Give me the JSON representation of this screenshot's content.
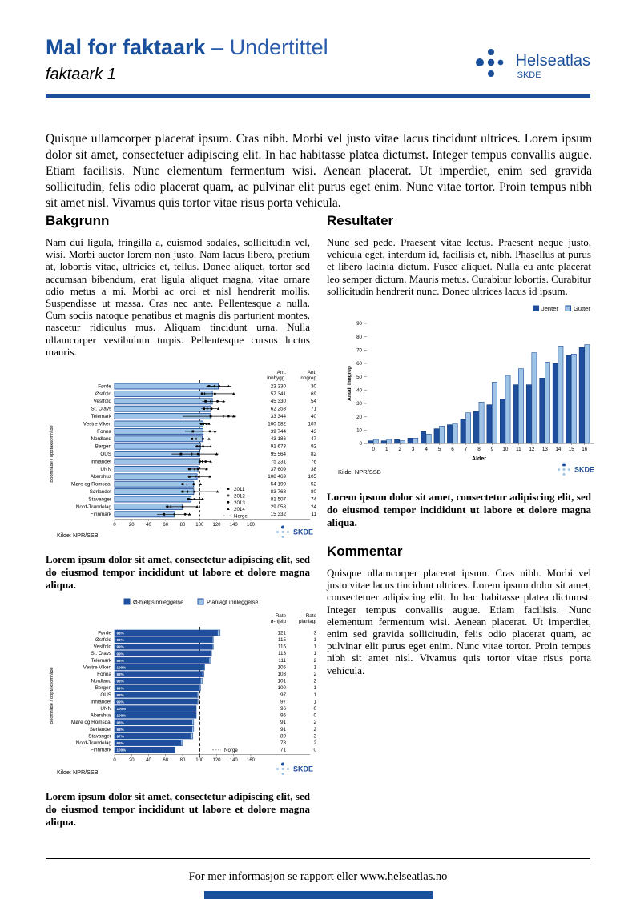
{
  "colors": {
    "brand": "#1a4f9c",
    "brand_light": "#2a5cab",
    "bar_dark": "#1f4e9c",
    "bar_light": "#9dc3e6",
    "bar_border": "#17467f",
    "norge_dash": "#999999"
  },
  "header": {
    "title_strong": "Mal for faktaark",
    "title_light": "– Undertittel",
    "subtitle": "faktaark 1",
    "logo_name": "Helseatlas",
    "logo_org": "SKDE"
  },
  "intro": "Quisque ullamcorper placerat ipsum. Cras nibh. Morbi vel justo vitae lacus tincidunt ultrices. Lorem ipsum dolor sit amet, consectetuer adipiscing elit. In hac habitasse platea dictumst. Integer tempus convallis augue. Etiam facilisis. Nunc elementum fermentum wisi. Aenean placerat. Ut imperdiet, enim sed gravida sollicitudin, felis odio placerat quam, ac pulvinar elit purus eget enim. Nunc vitae tortor. Proin tempus nibh sit amet nisl. Vivamus quis tortor vitae risus porta vehicula.",
  "sections": {
    "bakgrunn": {
      "heading": "Bakgrunn",
      "body": "Nam dui ligula, fringilla a, euismod sodales, sollicitudin vel, wisi. Morbi auctor lorem non justo. Nam lacus libero, pretium at, lobortis vitae, ultricies et, tellus. Donec aliquet, tortor sed accumsan bibendum, erat ligula aliquet magna, vitae ornare odio metus a mi. Morbi ac orci et nisl hendrerit mollis. Suspendisse ut massa. Cras nec ante. Pellentesque a nulla. Cum sociis natoque penatibus et magnis dis parturient montes, nascetur ridiculus mus. Aliquam tincidunt urna. Nulla ullamcorper vestibulum turpis. Pellentesque cursus luctus mauris."
    },
    "resultater": {
      "heading": "Resultater",
      "body": "Nunc sed pede. Praesent vitae lectus. Praesent neque justo, vehicula eget, interdum id, facilisis et, nibh. Phasellus at purus et libero lacinia dictum. Fusce aliquet. Nulla eu ante placerat leo semper dictum. Mauris metus. Curabitur lobortis. Curabitur sollicitudin hendrerit nunc. Donec ultrices lacus id ipsum."
    },
    "kommentar": {
      "heading": "Kommentar",
      "body": "Quisque ullamcorper placerat ipsum. Cras nibh. Morbi vel justo vitae lacus tincidunt ultrices. Lorem ipsum dolor sit amet, consectetuer adipiscing elit. In hac habitasse platea dictumst. Integer tempus convallis augue. Etiam facilisis. Nunc elementum fermentum wisi. Aenean placerat. Ut imperdiet, enim sed gravida sollicitudin, felis odio placerat quam, ac pulvinar elit purus eget enim. Nunc vitae tortor. Proin tempus nibh sit amet nisl. Vivamus quis tortor vitae risus porta vehicula."
    }
  },
  "captions": {
    "chart1": "Lorem ipsum dolor sit amet, consectetur adipiscing elit, sed do eiusmod tempor incididunt ut labore et dolore magna aliqua.",
    "chart2": "Lorem ipsum dolor sit amet, consectetur adipiscing elit, sed do eiusmod tempor incididunt ut labore et dolore magna aliqua.",
    "chart3": "Lorem ipsum dolor sit amet, consectetur adipiscing elit, sed do eiusmod tempor incididunt ut labore et dolore magna aliqua."
  },
  "footer": {
    "text": "For mer informasjon se rapport eller www.helseatlas.no"
  },
  "chart_data": [
    {
      "type": "bar-horizontal-error",
      "ylabel": "Boområde / opptaksområde",
      "xlim": [
        0,
        160
      ],
      "xticks": [
        0,
        20,
        40,
        60,
        80,
        100,
        120,
        140,
        160
      ],
      "reference_line": 100,
      "source": "Kilde: NPR/SSB",
      "legend_years": [
        "2011",
        "2012",
        "2013",
        "2014"
      ],
      "legend_norge": "Norge",
      "col_headers": [
        [
          "Ant.",
          "innbygg."
        ],
        [
          "Ant.",
          "inngrep"
        ]
      ],
      "rows": [
        {
          "name": "Førde",
          "bar": 122,
          "range": [
            108,
            137
          ],
          "points": [
            111,
            117,
            123,
            134
          ],
          "innbygg": "23 330",
          "inngrep": "30"
        },
        {
          "name": "Østfold",
          "bar": 115,
          "range": [
            101,
            141
          ],
          "points": [
            103,
            106,
            118,
            140
          ],
          "innbygg": "57 341",
          "inngrep": "69"
        },
        {
          "name": "Vestfold",
          "bar": 115,
          "range": [
            103,
            130
          ],
          "points": [
            107,
            113,
            121,
            128
          ],
          "innbygg": "45 330",
          "inngrep": "54"
        },
        {
          "name": "St. Olavs",
          "bar": 113,
          "range": [
            102,
            123
          ],
          "points": [
            105,
            109,
            114,
            122
          ],
          "innbygg": "62 253",
          "inngrep": "71"
        },
        {
          "name": "Telemark",
          "bar": 113,
          "range": [
            80,
            143
          ],
          "points": [
            113,
            128,
            134,
            140
          ],
          "innbygg": "33 344",
          "inngrep": "40"
        },
        {
          "name": "Vestre Viken",
          "bar": 104,
          "range": [
            100,
            112
          ],
          "points": [
            102,
            105,
            108,
            111
          ],
          "innbygg": "100 582",
          "inngrep": "107"
        },
        {
          "name": "Fonna",
          "bar": 104,
          "range": [
            83,
            120
          ],
          "points": [
            92,
            104,
            112,
            118
          ],
          "innbygg": "39 744",
          "inngrep": "43"
        },
        {
          "name": "Nordland",
          "bar": 103,
          "range": [
            89,
            112
          ],
          "points": [
            91,
            96,
            104,
            111
          ],
          "innbygg": "43 186",
          "inngrep": "47"
        },
        {
          "name": "Bergen",
          "bar": 101,
          "range": [
            95,
            114
          ],
          "points": [
            97,
            100,
            104,
            113
          ],
          "innbygg": "91 673",
          "inngrep": "92"
        },
        {
          "name": "OUS",
          "bar": 100,
          "range": [
            67,
            122
          ],
          "points": [
            78,
            91,
            98,
            120
          ],
          "innbygg": "95 564",
          "inngrep": "82"
        },
        {
          "name": "Innlandet",
          "bar": 100,
          "range": [
            99,
            114
          ],
          "points": [
            100,
            103,
            107,
            113
          ],
          "innbygg": "75 231",
          "inngrep": "76"
        },
        {
          "name": "UNN",
          "bar": 98,
          "range": [
            86,
            110
          ],
          "points": [
            88,
            94,
            98,
            108
          ],
          "innbygg": "37 609",
          "inngrep": "38"
        },
        {
          "name": "Akershus",
          "bar": 97,
          "range": [
            86,
            113
          ],
          "points": [
            88,
            95,
            99,
            112
          ],
          "innbygg": "108 469",
          "inngrep": "105"
        },
        {
          "name": "Møre og Romsdal",
          "bar": 93,
          "range": [
            78,
            102
          ],
          "points": [
            80,
            85,
            93,
            101
          ],
          "innbygg": "54 199",
          "inngrep": "52"
        },
        {
          "name": "Sørlandet",
          "bar": 93,
          "range": [
            78,
            122
          ],
          "points": [
            80,
            86,
            94,
            121
          ],
          "innbygg": "83 768",
          "inngrep": "80"
        },
        {
          "name": "Stavanger",
          "bar": 90,
          "range": [
            85,
            105
          ],
          "points": [
            87,
            90,
            94,
            103
          ],
          "innbygg": "81 507",
          "inngrep": "74"
        },
        {
          "name": "Nord-Trøndelag",
          "bar": 80,
          "range": [
            60,
            98
          ],
          "points": [
            62,
            66,
            80,
            97
          ],
          "innbygg": "29 058",
          "inngrep": "24"
        },
        {
          "name": "Finnmark",
          "bar": 71,
          "range": [
            50,
            90
          ],
          "points": [
            58,
            70,
            83,
            88
          ],
          "innbygg": "15 332",
          "inngrep": "11"
        }
      ]
    },
    {
      "type": "bar-horizontal-stacked",
      "ylabel": "Boområde / opptaksområde",
      "xlim": [
        0,
        160
      ],
      "xticks": [
        0,
        20,
        40,
        60,
        80,
        100,
        120,
        140,
        160
      ],
      "reference_line": 100,
      "source": "Kilde: NPR/SSB",
      "legend": [
        "Ø-hjelpsinnleggelse",
        "Planlagt innleggelse"
      ],
      "legend_norge": "Norge",
      "col_headers": [
        [
          "Rate",
          "ø-hjelp"
        ],
        [
          "Rate",
          "planlagt"
        ]
      ],
      "rows": [
        {
          "name": "Førde",
          "pct": "98%",
          "rate_ohjelp": 121,
          "rate_planlagt": 3
        },
        {
          "name": "Østfold",
          "pct": "99%",
          "rate_ohjelp": 115,
          "rate_planlagt": 1
        },
        {
          "name": "Vestfold",
          "pct": "99%",
          "rate_ohjelp": 115,
          "rate_planlagt": 1
        },
        {
          "name": "St. Olavs",
          "pct": "99%",
          "rate_ohjelp": 113,
          "rate_planlagt": 1
        },
        {
          "name": "Telemark",
          "pct": "98%",
          "rate_ohjelp": 111,
          "rate_planlagt": 2
        },
        {
          "name": "Vestre Viken",
          "pct": "100%",
          "rate_ohjelp": 105,
          "rate_planlagt": 1
        },
        {
          "name": "Fonna",
          "pct": "98%",
          "rate_ohjelp": 103,
          "rate_planlagt": 2
        },
        {
          "name": "Nordland",
          "pct": "98%",
          "rate_ohjelp": 101,
          "rate_planlagt": 2
        },
        {
          "name": "Bergen",
          "pct": "99%",
          "rate_ohjelp": 100,
          "rate_planlagt": 1
        },
        {
          "name": "OUS",
          "pct": "98%",
          "rate_ohjelp": 97,
          "rate_planlagt": 1
        },
        {
          "name": "Innlandet",
          "pct": "99%",
          "rate_ohjelp": 97,
          "rate_planlagt": 1
        },
        {
          "name": "UNN",
          "pct": "100%",
          "rate_ohjelp": 96,
          "rate_planlagt": 0
        },
        {
          "name": "Akershus",
          "pct": "100%",
          "rate_ohjelp": 96,
          "rate_planlagt": 0
        },
        {
          "name": "Møre og Romsdal",
          "pct": "98%",
          "rate_ohjelp": 91,
          "rate_planlagt": 2
        },
        {
          "name": "Sørlandet",
          "pct": "98%",
          "rate_ohjelp": 91,
          "rate_planlagt": 2
        },
        {
          "name": "Stavanger",
          "pct": "97%",
          "rate_ohjelp": 89,
          "rate_planlagt": 3
        },
        {
          "name": "Nord-Trøndelag",
          "pct": "98%",
          "rate_ohjelp": 78,
          "rate_planlagt": 2
        },
        {
          "name": "Finnmark",
          "pct": "100%",
          "rate_ohjelp": 71,
          "rate_planlagt": 0
        }
      ]
    },
    {
      "type": "bar-grouped-vertical",
      "xlabel": "Alder",
      "ylabel": "Antall inngrep",
      "ylim": [
        0,
        90
      ],
      "yticks": [
        0,
        10,
        20,
        30,
        40,
        50,
        60,
        70,
        80,
        90
      ],
      "source": "Kilde: NPR/SSB",
      "categories": [
        "0",
        "1",
        "2",
        "3",
        "4",
        "5",
        "6",
        "7",
        "8",
        "9",
        "10",
        "11",
        "12",
        "13",
        "14",
        "15",
        "16"
      ],
      "series": [
        {
          "name": "Jenter",
          "values": [
            2,
            2,
            3,
            4,
            9,
            11,
            14,
            18,
            24,
            29,
            33,
            44,
            44,
            49,
            60,
            66,
            72
          ]
        },
        {
          "name": "Gutter",
          "values": [
            3,
            3,
            2,
            4,
            7,
            13,
            15,
            23,
            31,
            46,
            51,
            56,
            68,
            61,
            73,
            67,
            74
          ]
        }
      ]
    }
  ]
}
